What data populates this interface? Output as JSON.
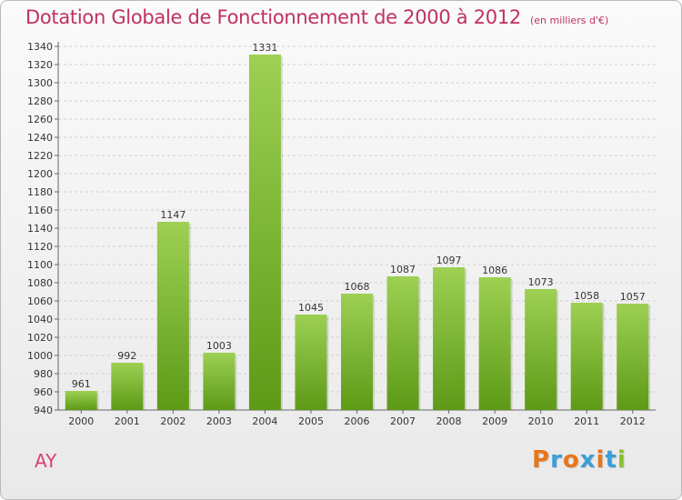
{
  "header": {
    "title": "Dotation Globale de Fonctionnement de 2000 à 2012",
    "subtitle": "(en milliers d'€)"
  },
  "footer": {
    "place": "AY",
    "logo_letters": [
      "P",
      "r",
      "o",
      "x",
      "i",
      "t",
      "i"
    ],
    "logo_colors": [
      "#e8761b",
      "#3a9ed8",
      "#e8761b",
      "#3a9ed8",
      "#e8761b",
      "#3a9ed8",
      "#8bbf2f"
    ]
  },
  "chart_data": {
    "type": "bar",
    "title": "Dotation Globale de Fonctionnement de 2000 à 2012",
    "subtitle": "(en milliers d'€)",
    "categories": [
      "2000",
      "2001",
      "2002",
      "2003",
      "2004",
      "2005",
      "2006",
      "2007",
      "2008",
      "2009",
      "2010",
      "2011",
      "2012"
    ],
    "values": [
      961,
      992,
      1147,
      1003,
      1331,
      1045,
      1068,
      1087,
      1097,
      1086,
      1073,
      1058,
      1057
    ],
    "ylim": [
      940,
      1340
    ],
    "ytick_step": 20,
    "grid": true,
    "xlabel": "",
    "ylabel": "",
    "bar_color_top": "#9dd053",
    "bar_color_bottom": "#5d9a16"
  }
}
